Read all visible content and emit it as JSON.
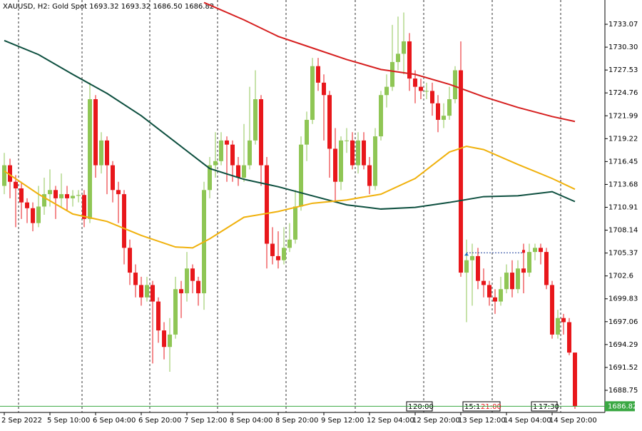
{
  "chart_data": {
    "type": "candlestick",
    "title": "XAUUSD, H2:  Gold Spot  1693.32 1693.32 1686.50 1686.82",
    "up_color": "#8fc655",
    "down_color": "#e8171b",
    "ylim": [
      1686.07,
      1736.01
    ],
    "yticks": [
      1733.07,
      {
        "value": 1730.3,
        "label": "1730.30"
      },
      1727.53,
      1724.76,
      1721.99,
      1719.22,
      1716.45,
      1713.68,
      1710.91,
      1708.14,
      1705.37,
      1702.6,
      1699.83,
      1697.06,
      1694.29,
      1691.52,
      1688.75
    ],
    "xticks": [
      {
        "value": 0,
        "label": "2 Sep 2022"
      },
      {
        "value": 8,
        "label": "5 Sep 10:00"
      },
      {
        "value": 16,
        "label": "6 Sep 04:00"
      },
      {
        "value": 24,
        "label": "6 Sep 20:00"
      },
      {
        "value": 32,
        "label": "7 Sep 12:00"
      },
      {
        "value": 40,
        "label": "8 Sep 04:00"
      },
      {
        "value": 48,
        "label": "8 Sep 20:00"
      },
      {
        "value": 56,
        "label": "9 Sep 12:00"
      },
      {
        "value": 64,
        "label": "12 Sep 04:00"
      },
      {
        "value": 72,
        "label": "12 Sep 20:00"
      },
      {
        "value": 80,
        "label": "13 Sep 12:00"
      },
      {
        "value": 88,
        "label": "14 Sep 04:00"
      },
      {
        "value": 96,
        "label": "14 Sep 20:00"
      }
    ],
    "candles": [
      [
        1713.5,
        1717.5,
        1712.5,
        1716.0
      ],
      [
        1716.0,
        1716.8,
        1712.0,
        1714.0
      ],
      [
        1714.0,
        1714.8,
        1708.5,
        1713.2
      ],
      [
        1713.2,
        1714.0,
        1709.5,
        1711.5
      ],
      [
        1711.5,
        1712.0,
        1709.0,
        1710.8
      ],
      [
        1710.8,
        1711.5,
        1708.0,
        1709.0
      ],
      [
        1709.0,
        1713.5,
        1708.5,
        1711.0
      ],
      [
        1711.0,
        1714.5,
        1710.0,
        1712.5
      ],
      [
        1712.5,
        1715.5,
        1711.0,
        1713.0
      ],
      [
        1713.0,
        1713.5,
        1709.5,
        1712.0
      ],
      [
        1712.0,
        1715.0,
        1711.0,
        1712.5
      ],
      [
        1712.5,
        1713.5,
        1710.5,
        1712.0
      ],
      [
        1712.0,
        1713.0,
        1711.0,
        1712.3
      ],
      [
        1712.3,
        1713.0,
        1711.5,
        1712.4
      ],
      [
        1712.4,
        1713.0,
        1708.5,
        1709.5
      ],
      [
        1709.5,
        1726.0,
        1709.0,
        1724.0
      ],
      [
        1724.0,
        1724.5,
        1714.5,
        1716.0
      ],
      [
        1716.0,
        1720.0,
        1715.0,
        1719.0
      ],
      [
        1719.0,
        1719.5,
        1712.5,
        1716.0
      ],
      [
        1716.0,
        1716.5,
        1711.5,
        1713.0
      ],
      [
        1713.0,
        1714.0,
        1709.0,
        1712.5
      ],
      [
        1712.5,
        1713.0,
        1704.0,
        1706.0
      ],
      [
        1706.0,
        1707.0,
        1701.5,
        1703.0
      ],
      [
        1703.0,
        1704.0,
        1700.0,
        1701.5
      ],
      [
        1701.5,
        1702.5,
        1699.0,
        1700.0
      ],
      [
        1700.0,
        1702.5,
        1699.5,
        1701.5
      ],
      [
        1701.5,
        1702.0,
        1692.0,
        1699.5
      ],
      [
        1699.5,
        1700.0,
        1694.5,
        1696.0
      ],
      [
        1696.0,
        1697.0,
        1692.5,
        1694.0
      ],
      [
        1694.0,
        1697.5,
        1691.0,
        1695.5
      ],
      [
        1695.5,
        1702.5,
        1695.0,
        1701.0
      ],
      [
        1701.0,
        1702.0,
        1697.5,
        1700.5
      ],
      [
        1700.5,
        1705.5,
        1699.5,
        1703.5
      ],
      [
        1703.5,
        1704.0,
        1700.5,
        1702.0
      ],
      [
        1702.0,
        1702.5,
        1699.0,
        1700.5
      ],
      [
        1700.5,
        1714.0,
        1698.5,
        1713.0
      ],
      [
        1713.0,
        1717.0,
        1712.0,
        1716.0
      ],
      [
        1716.0,
        1720.0,
        1714.5,
        1716.5
      ],
      [
        1716.5,
        1720.0,
        1716.0,
        1719.0
      ],
      [
        1719.0,
        1719.5,
        1714.0,
        1718.5
      ],
      [
        1718.5,
        1719.0,
        1714.0,
        1716.0
      ],
      [
        1716.0,
        1717.0,
        1713.5,
        1714.5
      ],
      [
        1714.5,
        1721.0,
        1714.0,
        1716.0
      ],
      [
        1716.0,
        1725.5,
        1715.5,
        1719.0
      ],
      [
        1719.0,
        1727.5,
        1718.5,
        1724.0
      ],
      [
        1724.0,
        1724.5,
        1713.5,
        1716.0
      ],
      [
        1716.0,
        1717.0,
        1703.5,
        1706.5
      ],
      [
        1706.5,
        1708.5,
        1704.0,
        1705.0
      ],
      [
        1705.0,
        1708.0,
        1703.5,
        1704.5
      ],
      [
        1704.5,
        1708.5,
        1704.0,
        1706.0
      ],
      [
        1706.0,
        1709.0,
        1705.5,
        1707.0
      ],
      [
        1707.0,
        1713.0,
        1706.5,
        1711.0
      ],
      [
        1711.0,
        1719.5,
        1710.5,
        1718.5
      ],
      [
        1718.5,
        1722.5,
        1716.5,
        1721.5
      ],
      [
        1721.5,
        1729.0,
        1721.0,
        1728.0
      ],
      [
        1728.0,
        1729.0,
        1725.0,
        1726.0
      ],
      [
        1726.0,
        1727.0,
        1719.0,
        1724.5
      ],
      [
        1724.5,
        1725.0,
        1714.5,
        1718.0
      ],
      [
        1718.0,
        1720.5,
        1711.5,
        1714.0
      ],
      [
        1714.0,
        1719.5,
        1713.0,
        1719.0
      ],
      [
        1719.0,
        1720.5,
        1717.5,
        1719.0
      ],
      [
        1719.0,
        1720.0,
        1715.5,
        1716.0
      ],
      [
        1716.0,
        1720.0,
        1715.0,
        1719.0
      ],
      [
        1719.0,
        1720.0,
        1715.5,
        1716.0
      ],
      [
        1716.0,
        1717.0,
        1712.5,
        1713.5
      ],
      [
        1713.5,
        1720.5,
        1713.0,
        1719.5
      ],
      [
        1719.5,
        1725.0,
        1719.0,
        1724.5
      ],
      [
        1724.5,
        1727.0,
        1723.0,
        1725.5
      ],
      [
        1725.5,
        1733.0,
        1725.0,
        1728.5
      ],
      [
        1728.5,
        1734.0,
        1727.5,
        1729.5
      ],
      [
        1729.5,
        1734.5,
        1727.0,
        1731.0
      ],
      [
        1731.0,
        1732.0,
        1725.0,
        1726.5
      ],
      [
        1726.5,
        1727.5,
        1723.5,
        1725.5
      ],
      [
        1725.5,
        1726.5,
        1724.0,
        1725.0
      ],
      [
        1725.0,
        1726.0,
        1724.0,
        1725.0
      ],
      [
        1725.0,
        1726.0,
        1722.0,
        1723.5
      ],
      [
        1723.5,
        1724.5,
        1720.0,
        1721.5
      ],
      [
        1721.5,
        1723.5,
        1720.5,
        1722.0
      ],
      [
        1722.0,
        1725.5,
        1721.5,
        1724.0
      ],
      [
        1724.0,
        1728.0,
        1723.5,
        1727.5
      ],
      [
        1727.5,
        1731.0,
        1702.5,
        1703.0
      ],
      [
        1703.0,
        1707.0,
        1697.0,
        1704.5
      ],
      [
        1704.5,
        1706.5,
        1699.0,
        1705.0
      ],
      [
        1705.0,
        1706.0,
        1701.0,
        1702.0
      ],
      [
        1702.0,
        1703.5,
        1700.0,
        1701.5
      ],
      [
        1701.5,
        1702.0,
        1699.0,
        1700.0
      ],
      [
        1700.0,
        1701.0,
        1698.0,
        1699.5
      ],
      [
        1699.5,
        1702.5,
        1699.0,
        1701.0
      ],
      [
        1701.0,
        1704.0,
        1700.5,
        1703.0
      ],
      [
        1703.0,
        1704.5,
        1700.0,
        1701.0
      ],
      [
        1701.0,
        1704.5,
        1700.5,
        1703.5
      ],
      [
        1703.5,
        1706.5,
        1700.5,
        1703.0
      ],
      [
        1703.0,
        1706.5,
        1702.5,
        1705.5
      ],
      [
        1705.5,
        1706.5,
        1704.5,
        1706.0
      ],
      [
        1706.0,
        1706.5,
        1704.0,
        1705.5
      ],
      [
        1705.5,
        1706.0,
        1701.0,
        1701.5
      ],
      [
        1701.5,
        1702.0,
        1695.0,
        1695.5
      ],
      [
        1695.5,
        1698.5,
        1695.0,
        1697.5
      ],
      [
        1697.5,
        1698.0,
        1695.5,
        1697.0
      ],
      [
        1697.0,
        1697.5,
        1693.0,
        1693.32
      ],
      [
        1693.32,
        1693.32,
        1686.5,
        1686.82
      ]
    ],
    "series": [
      {
        "color": "#0d4f3f",
        "x": [
          0,
          6,
          12,
          18,
          24,
          30,
          36,
          42,
          48,
          54,
          60,
          66,
          72,
          78,
          84,
          90,
          96,
          100
        ],
        "values": [
          1731.1,
          1729.4,
          1727.0,
          1724.7,
          1722.0,
          1718.8,
          1715.6,
          1714.3,
          1713.4,
          1712.3,
          1711.2,
          1710.7,
          1710.9,
          1711.5,
          1712.2,
          1712.3,
          1712.8,
          1711.6
        ]
      },
      {
        "color": "#d61f1f",
        "x": [
          35,
          42,
          48,
          54,
          60,
          66,
          72,
          78,
          84,
          90,
          96,
          100
        ],
        "values": [
          1735.7,
          1733.6,
          1731.6,
          1730.2,
          1728.8,
          1727.6,
          1727.0,
          1725.8,
          1724.3,
          1723.0,
          1721.9,
          1721.3
        ]
      },
      {
        "color": "#f0b10c",
        "x": [
          0,
          6,
          12,
          18,
          24,
          30,
          33,
          36,
          42,
          48,
          54,
          60,
          66,
          72,
          78,
          81,
          84,
          90,
          96,
          100
        ],
        "values": [
          1715.3,
          1712.5,
          1710.1,
          1709.2,
          1707.5,
          1706.1,
          1706.0,
          1707.1,
          1709.7,
          1710.4,
          1711.4,
          1711.8,
          1712.5,
          1714.4,
          1717.6,
          1718.3,
          1717.9,
          1716.1,
          1714.4,
          1713.1
        ]
      }
    ],
    "trade_level": {
      "x": [
        81,
        91
      ],
      "y": 1705.4
    },
    "last_price_color": "#3aa843",
    "annotations": [
      "1",
      "20:00",
      "15:",
      "1",
      "21:00",
      "1",
      "17:30"
    ]
  }
}
